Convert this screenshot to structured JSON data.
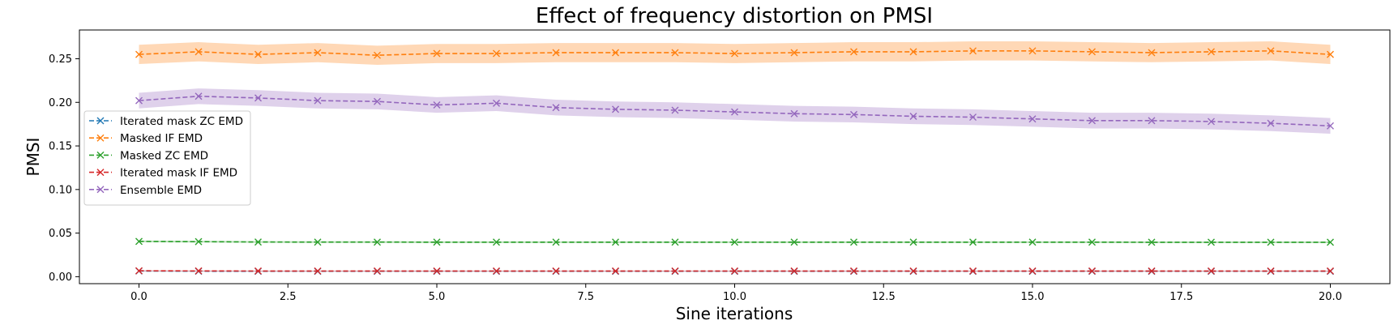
{
  "chart_data": {
    "type": "line",
    "title": "Effect of frequency distortion on PMSI",
    "xlabel": "Sine iterations",
    "ylabel": "PMSI",
    "xlim": [
      -1,
      21
    ],
    "ylim": [
      -0.008,
      0.283
    ],
    "xticks": [
      0.0,
      2.5,
      5.0,
      7.5,
      10.0,
      12.5,
      15.0,
      17.5,
      20.0
    ],
    "xtick_labels": [
      "0.0",
      "2.5",
      "5.0",
      "7.5",
      "10.0",
      "12.5",
      "15.0",
      "17.5",
      "20.0"
    ],
    "yticks": [
      0.0,
      0.05,
      0.1,
      0.15,
      0.2,
      0.25
    ],
    "ytick_labels": [
      "0.00",
      "0.05",
      "0.10",
      "0.15",
      "0.20",
      "0.25"
    ],
    "grid": false,
    "legend_position": "center-left",
    "x": [
      0,
      1,
      2,
      3,
      4,
      5,
      6,
      7,
      8,
      9,
      10,
      11,
      12,
      13,
      14,
      15,
      16,
      17,
      18,
      19,
      20
    ],
    "series": [
      {
        "name": "Iterated mask ZC EMD",
        "color": "#1f77b4",
        "values": [
          0.0065,
          0.0063,
          0.0062,
          0.0062,
          0.0062,
          0.0062,
          0.0062,
          0.0062,
          0.0062,
          0.0062,
          0.0062,
          0.0062,
          0.0062,
          0.0062,
          0.0062,
          0.0062,
          0.0062,
          0.0062,
          0.0062,
          0.0062,
          0.0062
        ],
        "band": 0.0005
      },
      {
        "name": "Masked IF EMD",
        "color": "#ff7f0e",
        "values": [
          0.255,
          0.258,
          0.255,
          0.257,
          0.254,
          0.256,
          0.256,
          0.257,
          0.257,
          0.257,
          0.256,
          0.257,
          0.258,
          0.258,
          0.259,
          0.259,
          0.258,
          0.257,
          0.258,
          0.259,
          0.255
        ],
        "band": 0.011
      },
      {
        "name": "Masked ZC EMD",
        "color": "#2ca02c",
        "values": [
          0.0405,
          0.0402,
          0.0398,
          0.0397,
          0.0397,
          0.0396,
          0.0396,
          0.0396,
          0.0396,
          0.0396,
          0.0396,
          0.0396,
          0.0396,
          0.0396,
          0.0396,
          0.0396,
          0.0396,
          0.0395,
          0.0395,
          0.0395,
          0.0395
        ],
        "band": 0.001
      },
      {
        "name": "Iterated mask IF EMD",
        "color": "#d62728",
        "values": [
          0.0068,
          0.0066,
          0.0065,
          0.0065,
          0.0065,
          0.0065,
          0.0065,
          0.0065,
          0.0065,
          0.0065,
          0.0065,
          0.0065,
          0.0065,
          0.0065,
          0.0065,
          0.0065,
          0.0065,
          0.0065,
          0.0065,
          0.0065,
          0.0065
        ],
        "band": 0.0005
      },
      {
        "name": "Ensemble EMD",
        "color": "#9467bd",
        "values": [
          0.202,
          0.207,
          0.205,
          0.202,
          0.201,
          0.197,
          0.199,
          0.194,
          0.192,
          0.191,
          0.189,
          0.187,
          0.186,
          0.184,
          0.183,
          0.181,
          0.179,
          0.179,
          0.178,
          0.176,
          0.173
        ],
        "band": 0.009
      }
    ]
  }
}
